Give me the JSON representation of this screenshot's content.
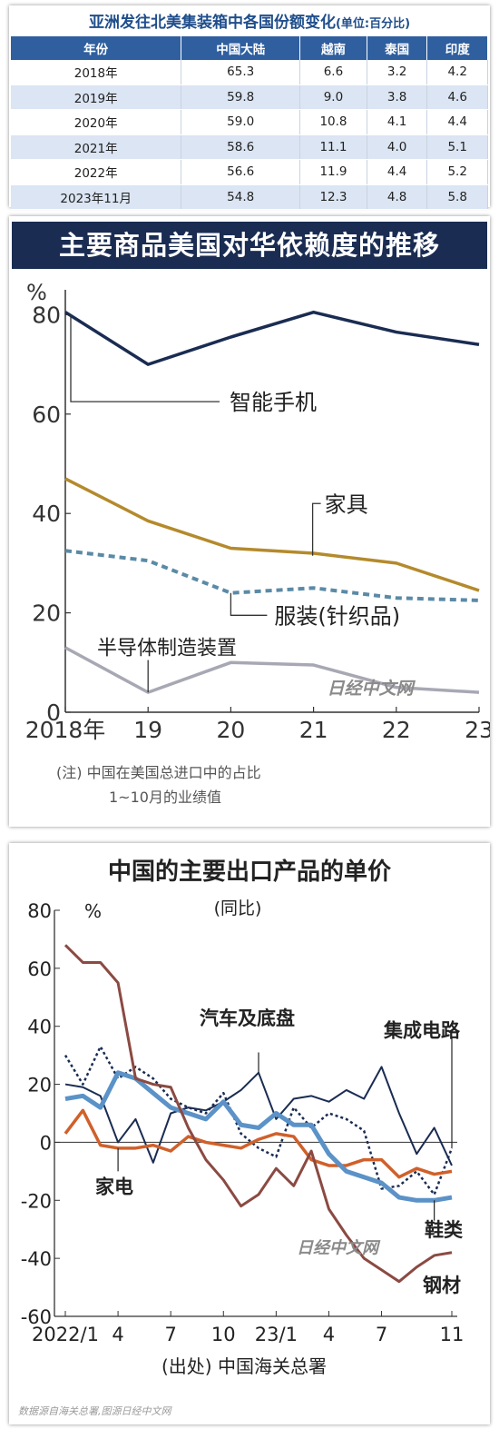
{
  "table": {
    "title": "亚洲发往北美集装箱中各国份额变化",
    "unit": "(单位:百分比)",
    "headers": [
      "年份",
      "中国大陆",
      "越南",
      "泰国",
      "印度"
    ],
    "rows": [
      [
        "2018年",
        "65.3",
        "6.6",
        "3.2",
        "4.2"
      ],
      [
        "2019年",
        "59.8",
        "9.0",
        "3.8",
        "4.6"
      ],
      [
        "2020年",
        "59.0",
        "10.8",
        "4.1",
        "4.4"
      ],
      [
        "2021年",
        "58.6",
        "11.1",
        "4.0",
        "5.1"
      ],
      [
        "2022年",
        "56.6",
        "11.9",
        "4.4",
        "5.2"
      ],
      [
        "2023年11月",
        "54.8",
        "12.3",
        "4.8",
        "5.8"
      ]
    ]
  },
  "chart1": {
    "header": "主要商品美国对华依赖度的推移",
    "unit": "%",
    "note1": "(注) 中国在美国总进口中的占比",
    "note2": "1~10月的业绩值",
    "watermark": "日经中文网",
    "colors": {
      "smartphone": "#1a2c52",
      "furniture": "#b48a2c",
      "apparel": "#5a8aa6",
      "semi": "#a8a8b4"
    }
  },
  "chart2": {
    "title": "中国的主要出口产品的单价",
    "subtitle": "(同比)",
    "unit": "%",
    "source": "(出处) 中国海关总署",
    "watermark": "日经中文网",
    "colors": {
      "auto": "#1a2c52",
      "ic": "#1a2c52",
      "appliance": "#d0602a",
      "shoes": "#5b92c8",
      "steel": "#8b4a42"
    }
  },
  "footnote": "数据源自海关总署,图源日经中文网",
  "chart_data": [
    {
      "type": "line",
      "title": "主要商品美国对华依赖度的推移",
      "x": [
        "2018年",
        "19",
        "20",
        "21",
        "22",
        "23"
      ],
      "ylabel": "%",
      "ylim": [
        0,
        85
      ],
      "yticks": [
        0,
        20,
        40,
        60,
        80
      ],
      "grid": false,
      "series": [
        {
          "name": "智能手机",
          "values": [
            80.5,
            70,
            75.5,
            80.5,
            76.5,
            74
          ]
        },
        {
          "name": "家具",
          "values": [
            47,
            38.5,
            33,
            32,
            30,
            24.5
          ]
        },
        {
          "name": "服装(针织品)",
          "values": [
            32.5,
            30.5,
            24,
            25,
            23,
            22.5
          ]
        },
        {
          "name": "半导体制造装置",
          "values": [
            13,
            4,
            10,
            9.5,
            5,
            4
          ]
        }
      ]
    },
    {
      "type": "line",
      "title": "中国的主要出口产品的单价",
      "subtitle": "(同比)",
      "xlabel": "",
      "ylabel": "%",
      "ylim": [
        -60,
        80
      ],
      "yticks": [
        80,
        60,
        40,
        20,
        0,
        -20,
        -40,
        -60
      ],
      "x": [
        "2022/1",
        "2",
        "3",
        "4",
        "5",
        "6",
        "7",
        "8",
        "9",
        "10",
        "11",
        "12",
        "23/1",
        "2",
        "3",
        "4",
        "5",
        "6",
        "7",
        "8",
        "9",
        "10",
        "11"
      ],
      "xtick_labels": [
        "2022/1",
        "4",
        "7",
        "10",
        "23/1",
        "4",
        "7",
        "11"
      ],
      "grid": false,
      "series": [
        {
          "name": "汽车及底盘",
          "values": [
            30,
            20,
            33,
            22,
            26,
            22,
            15,
            12,
            10,
            17,
            3,
            -2,
            -5,
            12,
            5,
            10,
            8,
            4,
            -16,
            -15,
            -10,
            -18,
            -2
          ]
        },
        {
          "name": "集成电路",
          "values": [
            20,
            19,
            16,
            0,
            8,
            -7,
            10,
            12,
            11,
            14,
            18,
            24,
            8,
            15,
            16,
            14,
            18,
            15,
            26,
            10,
            -4,
            5,
            -8
          ]
        },
        {
          "name": "家电",
          "values": [
            3,
            11,
            -1,
            -2,
            -2,
            -1,
            -3,
            2,
            0,
            -1,
            -2,
            1,
            3,
            2,
            -6,
            -8,
            -8,
            -6,
            -6,
            -12,
            -9,
            -11,
            -10
          ]
        },
        {
          "name": "鞋类",
          "values": [
            15,
            16,
            12,
            24,
            22,
            17,
            12,
            10,
            8,
            14,
            6,
            5,
            10,
            6,
            6,
            -4,
            -10,
            -12,
            -14,
            -19,
            -20,
            -20,
            -19
          ]
        },
        {
          "name": "钢材",
          "values": [
            68,
            62,
            62,
            55,
            22,
            20,
            19,
            5,
            -6,
            -13,
            -22,
            -18,
            -9,
            -15,
            -3,
            -23,
            -32,
            -40,
            -44,
            -48,
            -43,
            -39,
            -38
          ]
        }
      ]
    }
  ]
}
